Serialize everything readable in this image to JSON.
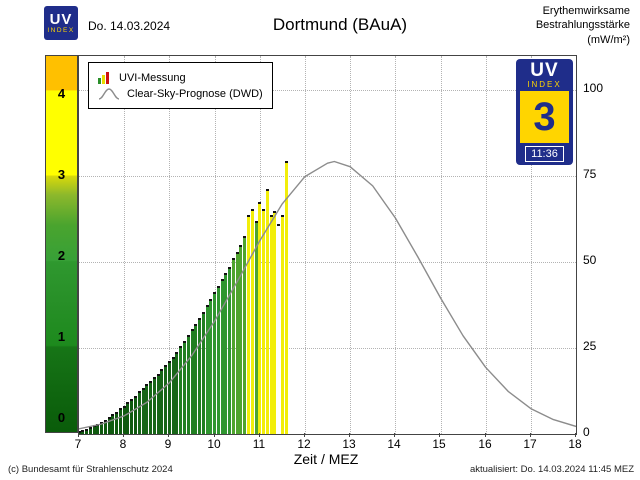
{
  "header": {
    "logo_uv": "UV",
    "logo_index": "INDEX",
    "date": "Do. 14.03.2024",
    "title": "Dortmund (BAuA)",
    "unit_label_lines": [
      "Erythemwirksame",
      "Bestrahlungsstärke",
      "(mW/m²)"
    ]
  },
  "legend": {
    "measurement": "UVI-Messung",
    "forecast": "Clear-Sky-Prognose (DWD)"
  },
  "uv_badge": {
    "uv": "UV",
    "index": "INDEX",
    "value": "3",
    "time": "11:36"
  },
  "axes": {
    "x_label": "Zeit / MEZ",
    "x_ticks": [
      7,
      8,
      9,
      10,
      11,
      12,
      13,
      14,
      15,
      16,
      17,
      18
    ],
    "y_right_ticks": [
      0,
      25,
      50,
      75,
      100
    ],
    "y_left_uvi_ticks": [
      0,
      1,
      2,
      3,
      4
    ]
  },
  "footer": {
    "copyright": "(c) Bundesamt für Strahlenschutz 2024",
    "updated": "aktualisiert: Do. 14.03.2024  11:45  MEZ"
  },
  "colors": {
    "badge_navy": "#1f2d8a",
    "badge_yellow": "#ffd500",
    "forecast_gray": "#8c8c8c",
    "bar_yellow": "#f2ee0a",
    "uvi_band_colors_bottom_to_top": [
      "#0a5c0a",
      "#1d8a1d",
      "#4aa42e",
      "#a8c12b",
      "#ffff00",
      "#ffc000"
    ]
  },
  "chart_data": {
    "type": "bar",
    "title": "Dortmund (BAuA)",
    "xlabel": "Zeit / MEZ",
    "ylabel": "Erythemwirksame Bestrahlungsstärke (mW/m²)",
    "x_range_hours": [
      7,
      18
    ],
    "y_range_mw": [
      0,
      110
    ],
    "mw_per_uvi": 25,
    "grid": true,
    "legend_position": "top-left",
    "bars": {
      "name": "UVI-Messung",
      "t_start_hour": 7.0,
      "t_step_hours": 0.0833333,
      "values_mw": [
        1,
        1.3,
        1.6,
        2,
        2.5,
        3,
        3.5,
        4.2,
        5,
        5.8,
        6.5,
        7.5,
        8.3,
        9.2,
        10.2,
        11.2,
        12.5,
        13.5,
        14.5,
        15.5,
        16.5,
        17.5,
        18.8,
        20,
        21.2,
        22.5,
        24,
        25.5,
        27,
        28.7,
        30.5,
        32,
        33.7,
        35.5,
        37.5,
        39.2,
        41.2,
        43,
        45,
        47,
        48.7,
        51.2,
        53,
        55,
        57.5,
        63.7,
        65.5,
        62,
        67.5,
        65.5,
        71.2,
        63.7,
        65,
        61.2,
        63.7,
        79.5
      ],
      "missing_white_indices": [
        53
      ]
    },
    "forecast_line": {
      "name": "Clear-Sky-Prognose (DWD)",
      "points_t_mw": [
        [
          7,
          1.5
        ],
        [
          7.5,
          2.9
        ],
        [
          8,
          5.3
        ],
        [
          8.5,
          9.2
        ],
        [
          9,
          14.9
        ],
        [
          9.5,
          22.9
        ],
        [
          10,
          32.8
        ],
        [
          10.5,
          44.3
        ],
        [
          11,
          56.2
        ],
        [
          11.5,
          67
        ],
        [
          12,
          74.9
        ],
        [
          12.5,
          78.8
        ],
        [
          12.65,
          79.3
        ],
        [
          13,
          77.8
        ],
        [
          13.5,
          72.2
        ],
        [
          14,
          62.9
        ],
        [
          14.5,
          51.5
        ],
        [
          15,
          39.6
        ],
        [
          15.5,
          28.6
        ],
        [
          16,
          19.4
        ],
        [
          16.5,
          12.4
        ],
        [
          17,
          7.4
        ],
        [
          17.5,
          4.2
        ],
        [
          18,
          2.2
        ]
      ]
    },
    "current": {
      "uv_index": 3,
      "time": "11:36"
    }
  }
}
